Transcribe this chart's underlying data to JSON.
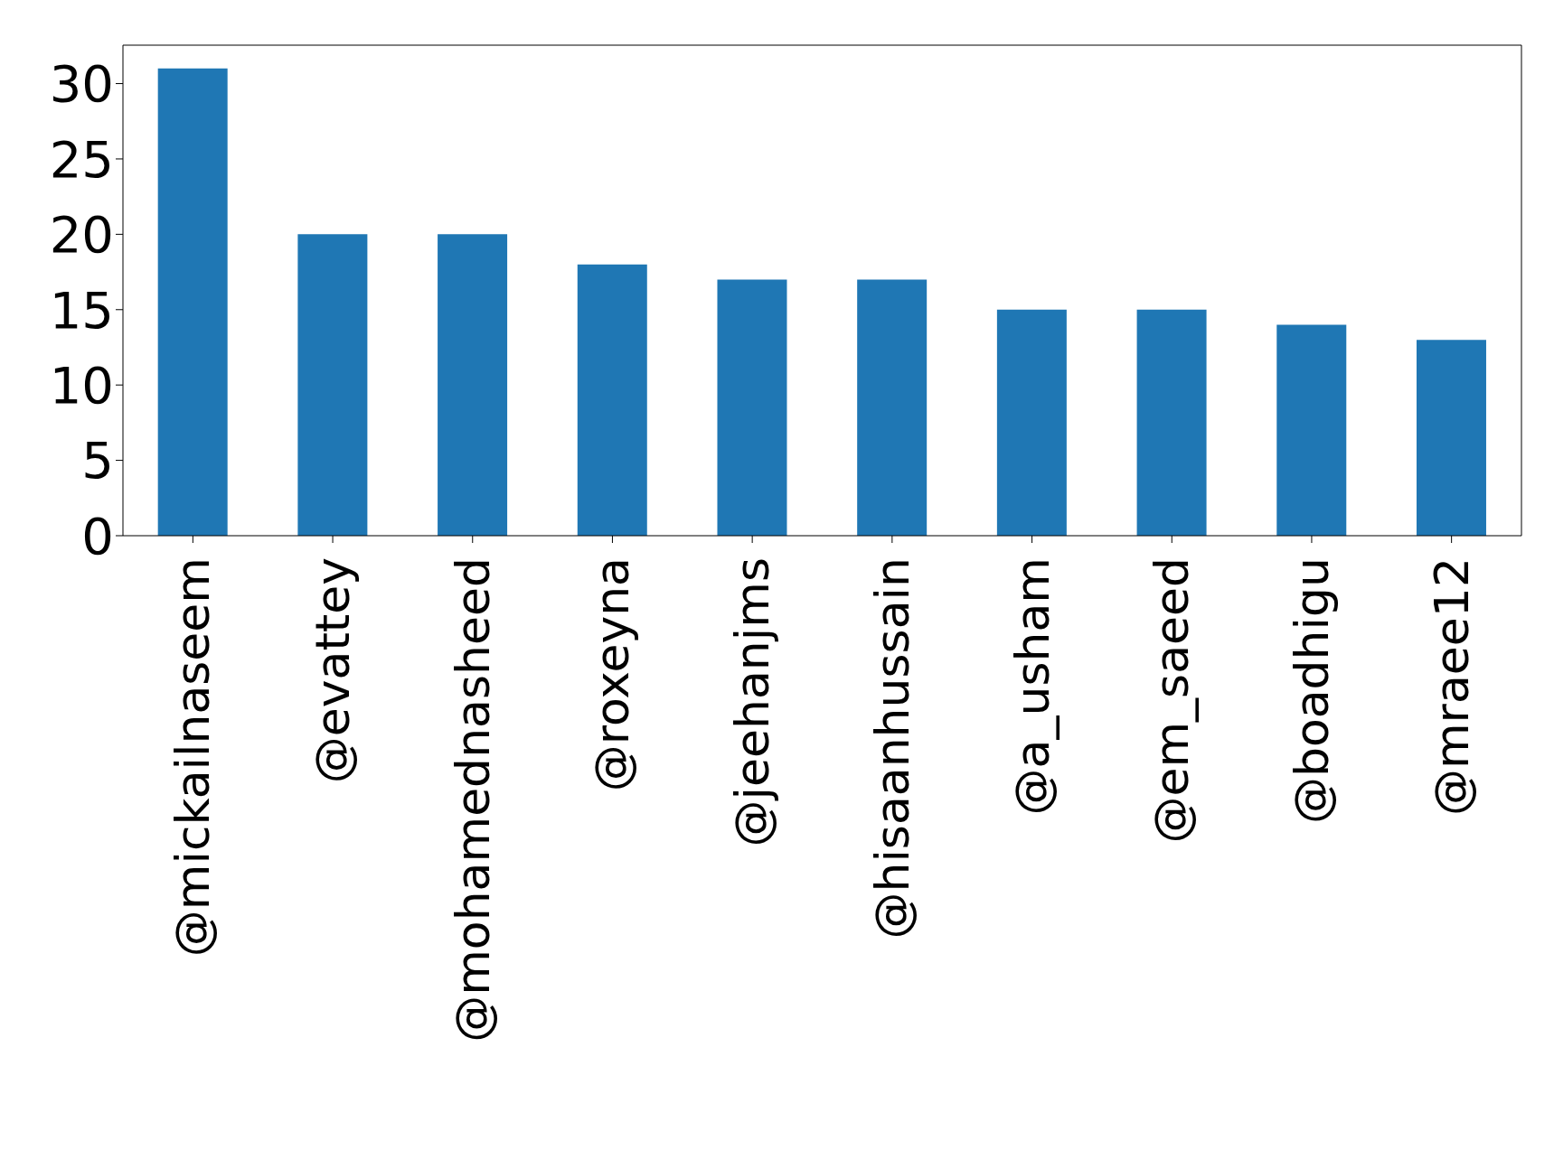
{
  "chart_data": {
    "type": "bar",
    "categories": [
      "@mickailnaseem",
      "@evattey",
      "@mohamednasheed",
      "@roxeyna",
      "@jeehanjms",
      "@hisaanhussain",
      "@a_usham",
      "@em_saeed",
      "@boadhigu",
      "@mraee12"
    ],
    "values": [
      31,
      20,
      20,
      18,
      17,
      17,
      15,
      15,
      14,
      13
    ],
    "color": "#1f77b4",
    "ylim": [
      0,
      32.55
    ],
    "yticks": [
      0,
      5,
      10,
      15,
      20,
      25,
      30
    ],
    "grid": false,
    "legend": false
  }
}
